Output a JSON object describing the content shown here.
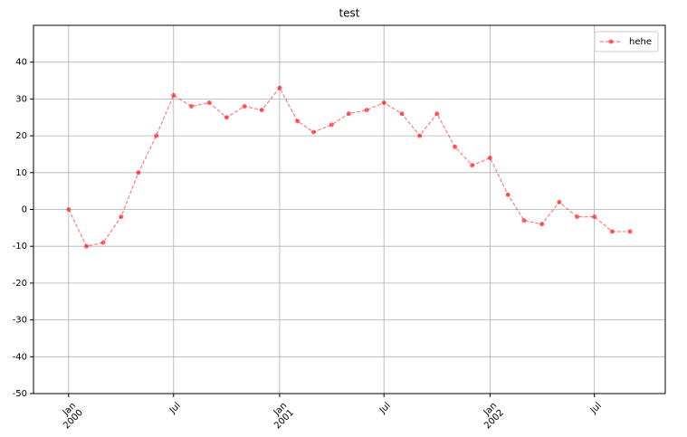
{
  "chart_data": {
    "type": "line",
    "title": "test",
    "x": [
      "2000-01",
      "2000-02",
      "2000-03",
      "2000-04",
      "2000-05",
      "2000-06",
      "2000-07",
      "2000-08",
      "2000-09",
      "2000-10",
      "2000-11",
      "2000-12",
      "2001-01",
      "2001-02",
      "2001-03",
      "2001-04",
      "2001-05",
      "2001-06",
      "2001-07",
      "2001-08",
      "2001-09",
      "2001-10",
      "2001-11",
      "2001-12",
      "2002-01",
      "2002-02",
      "2002-03",
      "2002-04",
      "2002-05",
      "2002-06",
      "2002-07",
      "2002-08",
      "2002-09"
    ],
    "series": [
      {
        "name": "hehe",
        "color": "#ff0000",
        "values": [
          0,
          -10,
          -9,
          -2,
          10,
          20,
          31,
          28,
          29,
          25,
          28,
          27,
          33,
          24,
          21,
          23,
          26,
          27,
          29,
          26,
          20,
          26,
          17,
          12,
          14,
          4,
          -3,
          -4,
          2,
          -2,
          -2,
          -6,
          -6
        ]
      }
    ],
    "xlim": [
      "1999-11",
      "2002-11"
    ],
    "xticks": [
      {
        "value": "2000-01",
        "label": "Jan\n2000"
      },
      {
        "value": "2000-07",
        "label": "Jul"
      },
      {
        "value": "2001-01",
        "label": "Jan\n2001"
      },
      {
        "value": "2001-07",
        "label": "Jul"
      },
      {
        "value": "2002-01",
        "label": "Jan\n2002"
      },
      {
        "value": "2002-07",
        "label": "Jul"
      }
    ],
    "ylim": [
      -50,
      50
    ],
    "yticks": [
      -50,
      -40,
      -30,
      -20,
      -10,
      0,
      10,
      20,
      30,
      40
    ],
    "grid": true,
    "legend": "upper right"
  }
}
